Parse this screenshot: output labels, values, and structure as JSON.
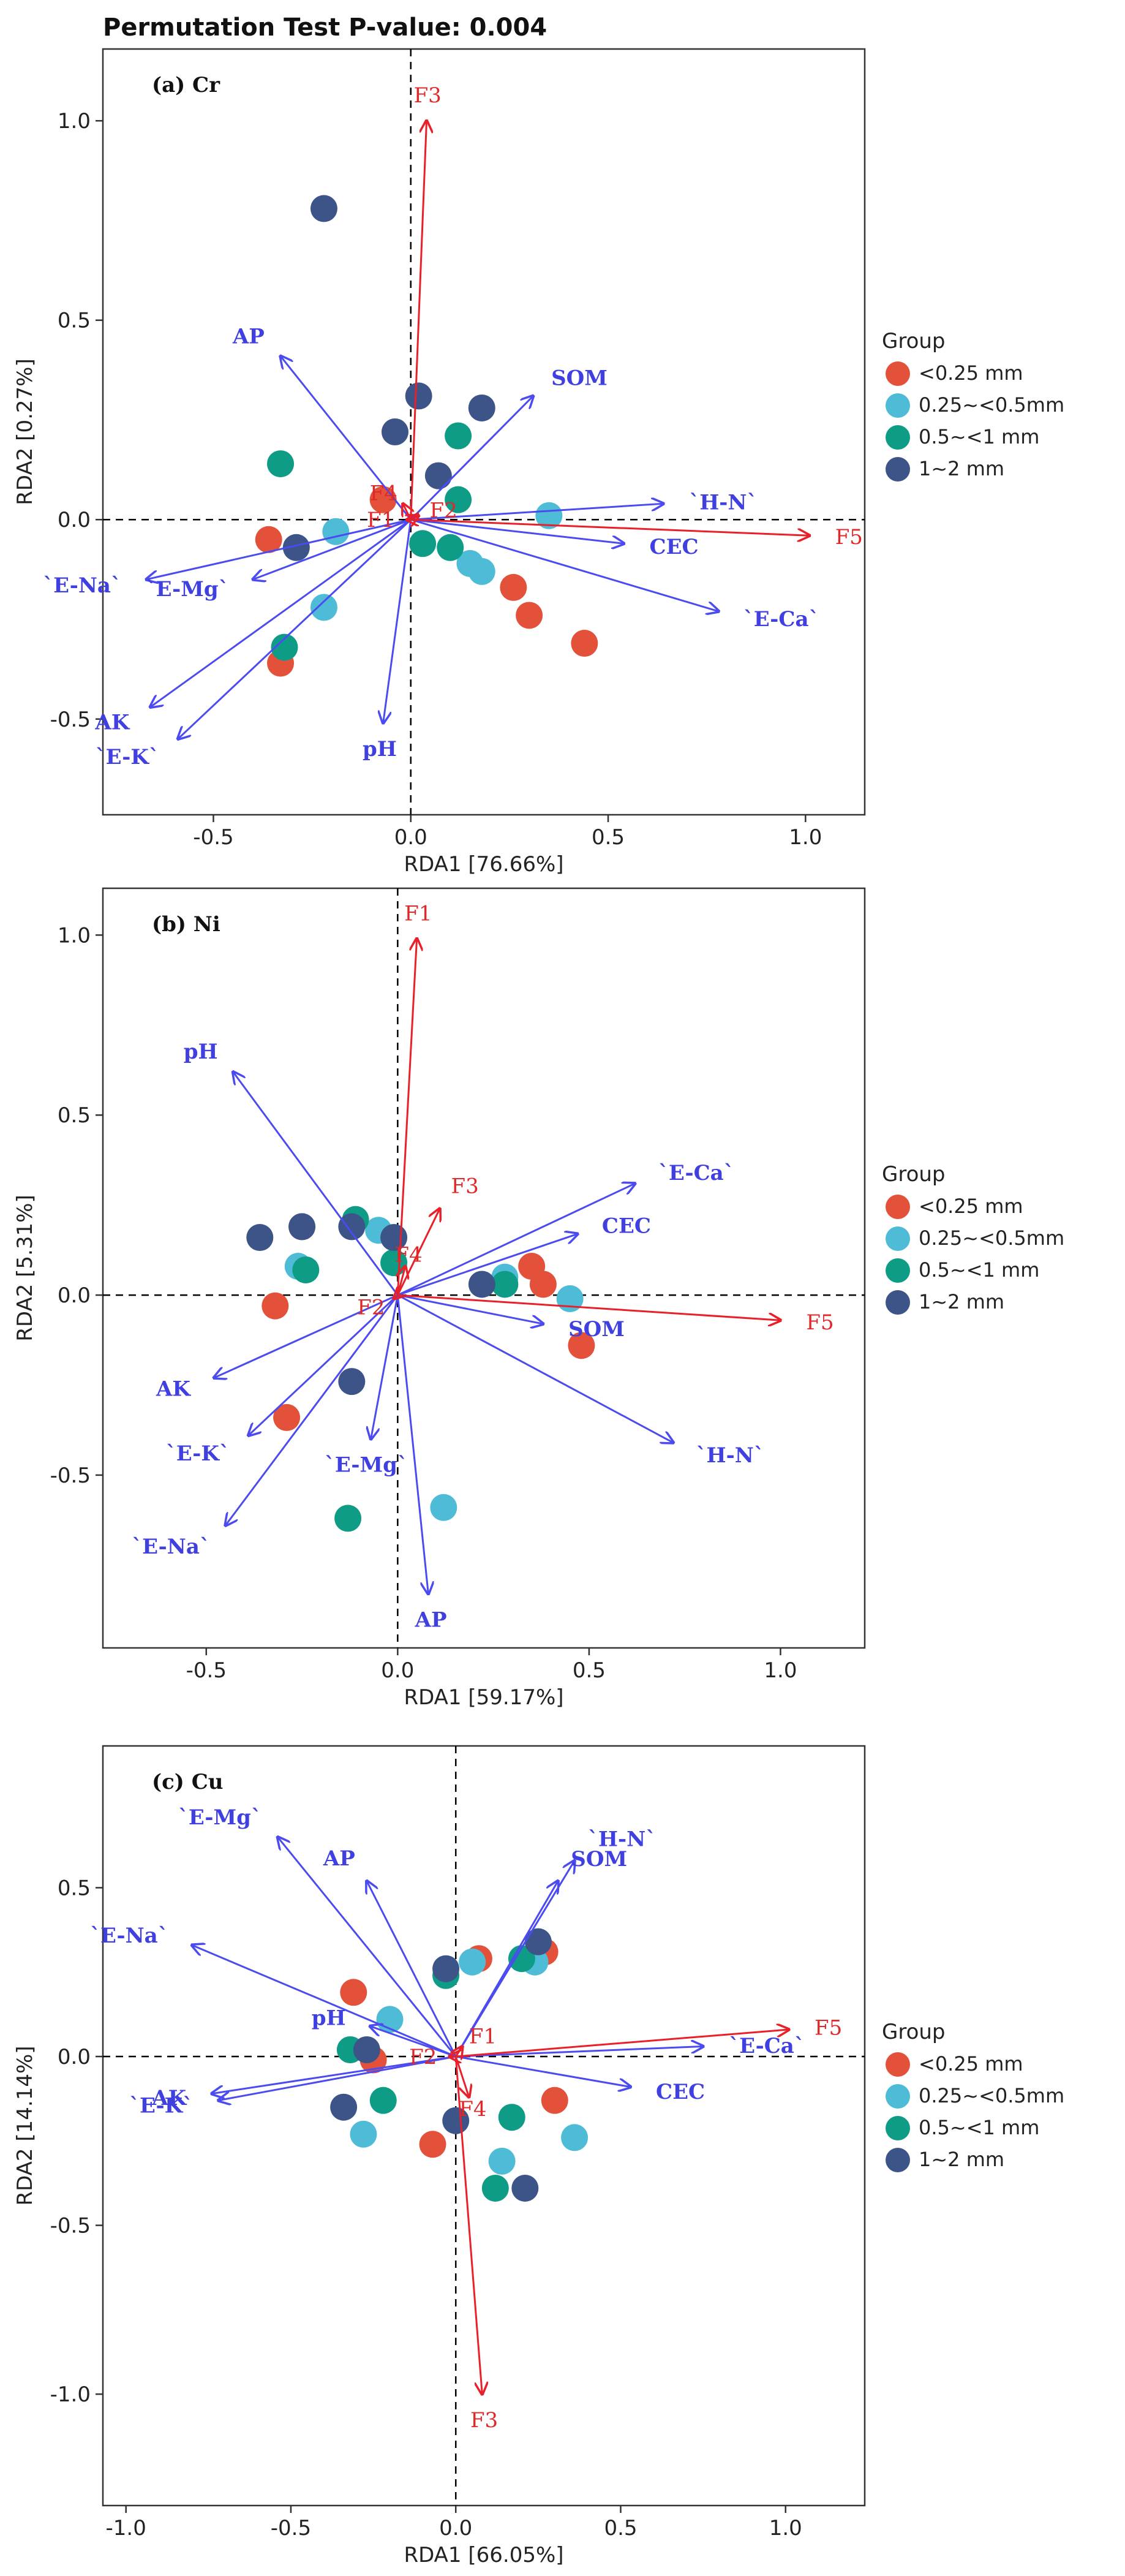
{
  "page_title": "Permutation Test P-value: 0.004",
  "colors": {
    "frame": "#333333",
    "grid_dash": "#000000",
    "env_arrow": "#4b4bf0",
    "env_label": "#4040e0",
    "fraction_arrow": "#e8202a",
    "fraction_label": "#e02828"
  },
  "legend": {
    "title": "Group",
    "items": [
      {
        "label": "<0.25 mm",
        "color": "#e4513b"
      },
      {
        "label": "0.25~<0.5mm",
        "color": "#4fbcd7"
      },
      {
        "label": "0.5~<1 mm",
        "color": "#0f9c86"
      },
      {
        "label": "1~2 mm",
        "color": "#3c5488"
      }
    ]
  },
  "chart_data": [
    {
      "type": "scatter",
      "panel": "(a) Cr",
      "xlabel": "RDA1 [76.66%]",
      "ylabel": "RDA2 [0.27%]",
      "xlim": [
        -0.78,
        1.15
      ],
      "ylim": [
        -0.74,
        1.18
      ],
      "xticks": [
        -0.5,
        0.0,
        0.5,
        1.0
      ],
      "yticks": [
        -0.5,
        0.0,
        0.5,
        1.0
      ],
      "env_arrows": [
        {
          "label": "AP",
          "x": -0.33,
          "y": 0.41
        },
        {
          "label": "SOM",
          "x": 0.31,
          "y": 0.31
        },
        {
          "label": "`H-N`",
          "x": 0.64,
          "y": 0.04
        },
        {
          "label": "CEC",
          "x": 0.54,
          "y": -0.06
        },
        {
          "label": "`E-Ca`",
          "x": 0.78,
          "y": -0.23
        },
        {
          "label": "`E-Na`",
          "x": -0.67,
          "y": -0.15
        },
        {
          "label": "`E-Mg`",
          "x": -0.4,
          "y": -0.15
        },
        {
          "label": "AK",
          "x": -0.66,
          "y": -0.47
        },
        {
          "label": "`E-K`",
          "x": -0.59,
          "y": -0.55
        },
        {
          "label": "pH",
          "x": -0.07,
          "y": -0.51
        }
      ],
      "fraction_arrows": [
        {
          "label": "F3",
          "x": 0.04,
          "y": 1.0
        },
        {
          "label": "F5",
          "x": 1.01,
          "y": -0.04
        },
        {
          "label": "F4",
          "x": -0.02,
          "y": 0.04
        },
        {
          "label": "F1",
          "x": -0.01,
          "y": 0.0
        },
        {
          "label": "F2",
          "x": 0.02,
          "y": 0.01
        }
      ],
      "points": [
        {
          "group": 0,
          "x": -0.36,
          "y": -0.05
        },
        {
          "group": 0,
          "x": -0.33,
          "y": -0.36
        },
        {
          "group": 0,
          "x": -0.07,
          "y": 0.05
        },
        {
          "group": 0,
          "x": 0.26,
          "y": -0.17
        },
        {
          "group": 0,
          "x": 0.3,
          "y": -0.24
        },
        {
          "group": 0,
          "x": 0.44,
          "y": -0.31
        },
        {
          "group": 1,
          "x": -0.19,
          "y": -0.03
        },
        {
          "group": 1,
          "x": -0.22,
          "y": -0.22
        },
        {
          "group": 1,
          "x": 0.15,
          "y": -0.11
        },
        {
          "group": 1,
          "x": 0.18,
          "y": -0.13
        },
        {
          "group": 1,
          "x": 0.35,
          "y": 0.01
        },
        {
          "group": 2,
          "x": -0.33,
          "y": 0.14
        },
        {
          "group": 2,
          "x": -0.32,
          "y": -0.32
        },
        {
          "group": 2,
          "x": 0.12,
          "y": 0.21
        },
        {
          "group": 2,
          "x": 0.12,
          "y": 0.05
        },
        {
          "group": 2,
          "x": 0.03,
          "y": -0.06
        },
        {
          "group": 2,
          "x": 0.1,
          "y": -0.07
        },
        {
          "group": 3,
          "x": -0.22,
          "y": 0.78
        },
        {
          "group": 3,
          "x": 0.02,
          "y": 0.31
        },
        {
          "group": 3,
          "x": 0.18,
          "y": 0.28
        },
        {
          "group": 3,
          "x": -0.04,
          "y": 0.22
        },
        {
          "group": 3,
          "x": 0.07,
          "y": 0.11
        },
        {
          "group": 3,
          "x": -0.29,
          "y": -0.07
        }
      ]
    },
    {
      "type": "scatter",
      "panel": "(b) Ni",
      "xlabel": "RDA1 [59.17%]",
      "ylabel": "RDA2 [5.31%]",
      "xlim": [
        -0.77,
        1.22
      ],
      "ylim": [
        -0.98,
        1.13
      ],
      "xticks": [
        -0.5,
        0.0,
        0.5,
        1.0
      ],
      "yticks": [
        -0.5,
        0.0,
        0.5,
        1.0
      ],
      "env_arrows": [
        {
          "label": "pH",
          "x": -0.43,
          "y": 0.62
        },
        {
          "label": "`E-Ca`",
          "x": 0.62,
          "y": 0.31
        },
        {
          "label": "CEC",
          "x": 0.47,
          "y": 0.17
        },
        {
          "label": "SOM",
          "x": 0.38,
          "y": -0.08
        },
        {
          "label": "`H-N`",
          "x": 0.72,
          "y": -0.41
        },
        {
          "label": "AK",
          "x": -0.48,
          "y": -0.23
        },
        {
          "label": "`E-K`",
          "x": -0.39,
          "y": -0.39
        },
        {
          "label": "`E-Mg`",
          "x": -0.07,
          "y": -0.4
        },
        {
          "label": "`E-Na`",
          "x": -0.45,
          "y": -0.64
        },
        {
          "label": "AP",
          "x": 0.08,
          "y": -0.83
        }
      ],
      "fraction_arrows": [
        {
          "label": "F1",
          "x": 0.05,
          "y": 0.99
        },
        {
          "label": "F3",
          "x": 0.11,
          "y": 0.24
        },
        {
          "label": "F4",
          "x": 0.02,
          "y": 0.08
        },
        {
          "label": "F2",
          "x": -0.01,
          "y": -0.01
        },
        {
          "label": "F5",
          "x": 1.0,
          "y": -0.07
        }
      ],
      "points": [
        {
          "group": 0,
          "x": -0.25,
          "y": 0.19
        },
        {
          "group": 0,
          "x": -0.32,
          "y": -0.03
        },
        {
          "group": 0,
          "x": -0.29,
          "y": -0.34
        },
        {
          "group": 0,
          "x": 0.35,
          "y": 0.08
        },
        {
          "group": 0,
          "x": 0.38,
          "y": 0.03
        },
        {
          "group": 0,
          "x": 0.48,
          "y": -0.14
        },
        {
          "group": 1,
          "x": -0.26,
          "y": 0.08
        },
        {
          "group": 1,
          "x": -0.05,
          "y": 0.18
        },
        {
          "group": 1,
          "x": 0.28,
          "y": 0.05
        },
        {
          "group": 1,
          "x": 0.45,
          "y": -0.01
        },
        {
          "group": 1,
          "x": 0.12,
          "y": -0.59
        },
        {
          "group": 2,
          "x": -0.11,
          "y": 0.21
        },
        {
          "group": 2,
          "x": -0.24,
          "y": 0.07
        },
        {
          "group": 2,
          "x": -0.01,
          "y": 0.09
        },
        {
          "group": 2,
          "x": 0.28,
          "y": 0.03
        },
        {
          "group": 2,
          "x": -0.13,
          "y": -0.62
        },
        {
          "group": 3,
          "x": -0.36,
          "y": 0.16
        },
        {
          "group": 3,
          "x": -0.25,
          "y": 0.19
        },
        {
          "group": 3,
          "x": -0.12,
          "y": 0.19
        },
        {
          "group": 3,
          "x": -0.01,
          "y": 0.16
        },
        {
          "group": 3,
          "x": 0.22,
          "y": 0.03
        },
        {
          "group": 3,
          "x": -0.12,
          "y": -0.24
        }
      ]
    },
    {
      "type": "scatter",
      "panel": "(c) Cu",
      "xlabel": "RDA1 [66.05%]",
      "ylabel": "RDA2 [14.14%]",
      "xlim": [
        -1.07,
        1.24
      ],
      "ylim": [
        -1.33,
        0.92
      ],
      "xticks": [
        -1.0,
        -0.5,
        0.0,
        0.5,
        1.0
      ],
      "yticks": [
        -1.0,
        -0.5,
        0.0,
        0.5
      ],
      "env_arrows": [
        {
          "label": "`E-Mg`",
          "x": -0.54,
          "y": 0.65
        },
        {
          "label": "AP",
          "x": -0.27,
          "y": 0.52
        },
        {
          "label": "SOM",
          "x": 0.31,
          "y": 0.52
        },
        {
          "label": "`H-N`",
          "x": 0.36,
          "y": 0.58
        },
        {
          "label": "`E-Na`",
          "x": -0.8,
          "y": 0.33
        },
        {
          "label": "pH",
          "x": -0.26,
          "y": 0.09
        },
        {
          "label": "`E-Ca`",
          "x": 0.75,
          "y": 0.03
        },
        {
          "label": "CEC",
          "x": 0.53,
          "y": -0.09
        },
        {
          "label": "AK",
          "x": -0.74,
          "y": -0.11
        },
        {
          "label": "`E-K`",
          "x": -0.72,
          "y": -0.13
        }
      ],
      "fraction_arrows": [
        {
          "label": "F5",
          "x": 1.01,
          "y": 0.08
        },
        {
          "label": "F1",
          "x": 0.02,
          "y": 0.03
        },
        {
          "label": "F2",
          "x": -0.02,
          "y": 0.0
        },
        {
          "label": "F4",
          "x": 0.04,
          "y": -0.12
        },
        {
          "label": "F3",
          "x": 0.08,
          "y": -1.0
        }
      ],
      "points": [
        {
          "group": 0,
          "x": -0.31,
          "y": 0.19
        },
        {
          "group": 0,
          "x": -0.25,
          "y": -0.01
        },
        {
          "group": 0,
          "x": 0.07,
          "y": 0.29
        },
        {
          "group": 0,
          "x": 0.27,
          "y": 0.31
        },
        {
          "group": 0,
          "x": 0.3,
          "y": -0.13
        },
        {
          "group": 0,
          "x": -0.07,
          "y": -0.26
        },
        {
          "group": 1,
          "x": -0.2,
          "y": 0.11
        },
        {
          "group": 1,
          "x": 0.05,
          "y": 0.28
        },
        {
          "group": 1,
          "x": 0.24,
          "y": 0.28
        },
        {
          "group": 1,
          "x": -0.28,
          "y": -0.23
        },
        {
          "group": 1,
          "x": 0.14,
          "y": -0.31
        },
        {
          "group": 1,
          "x": 0.36,
          "y": -0.24
        },
        {
          "group": 2,
          "x": -0.03,
          "y": 0.24
        },
        {
          "group": 2,
          "x": 0.2,
          "y": 0.29
        },
        {
          "group": 2,
          "x": -0.32,
          "y": 0.02
        },
        {
          "group": 2,
          "x": -0.22,
          "y": -0.13
        },
        {
          "group": 2,
          "x": 0.17,
          "y": -0.18
        },
        {
          "group": 2,
          "x": 0.12,
          "y": -0.39
        },
        {
          "group": 3,
          "x": -0.03,
          "y": 0.26
        },
        {
          "group": 3,
          "x": 0.25,
          "y": 0.34
        },
        {
          "group": 3,
          "x": -0.27,
          "y": 0.02
        },
        {
          "group": 3,
          "x": -0.34,
          "y": -0.15
        },
        {
          "group": 3,
          "x": 0.0,
          "y": -0.19
        },
        {
          "group": 3,
          "x": 0.21,
          "y": -0.39
        }
      ]
    }
  ]
}
